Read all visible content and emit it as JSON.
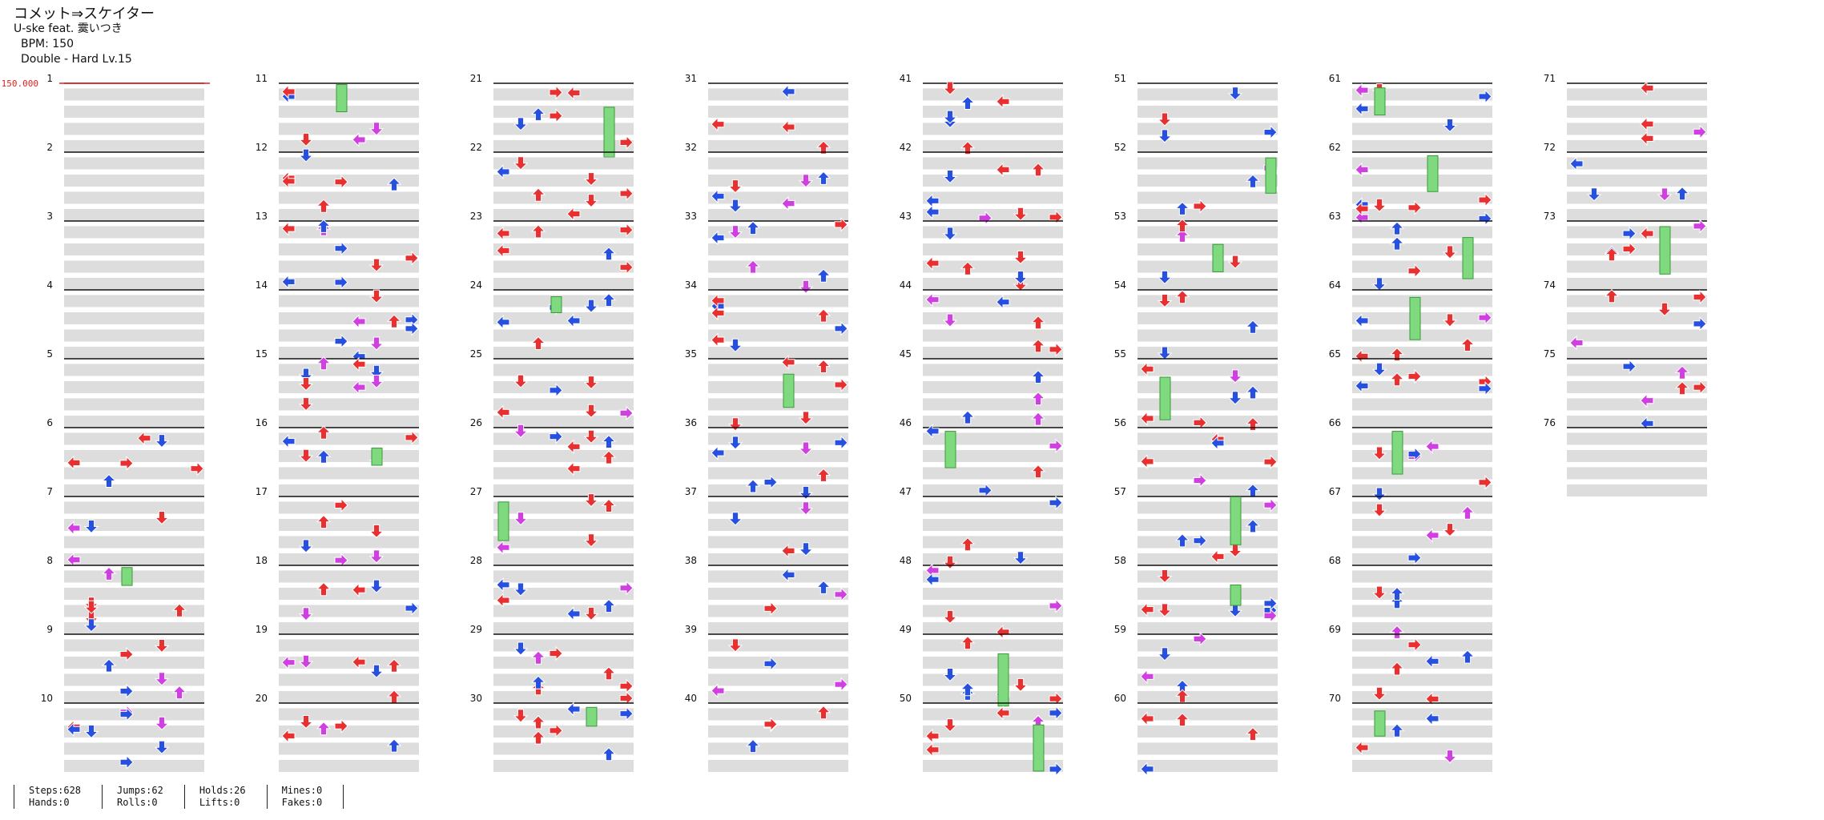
{
  "header": {
    "title": "コメット⇒スケイター",
    "artist": "U-ske feat. 霙いつき",
    "bpm": "BPM: 150",
    "difficulty": "Double - Hard  Lv.15"
  },
  "bpm_marker": "150.000",
  "measure_labels": [
    "1",
    "2",
    "3",
    "4",
    "5",
    "6",
    "7",
    "8",
    "9",
    "10",
    "11",
    "12",
    "13",
    "14",
    "15",
    "16",
    "17",
    "18",
    "19",
    "20",
    "21",
    "22",
    "23",
    "24",
    "25",
    "26",
    "27",
    "28",
    "29",
    "30",
    "31",
    "32",
    "33",
    "34",
    "35",
    "36",
    "37",
    "38",
    "39",
    "40",
    "41",
    "42",
    "43",
    "44",
    "45",
    "46",
    "47",
    "48",
    "49",
    "50",
    "51",
    "52",
    "53",
    "54",
    "55",
    "56",
    "57",
    "58",
    "59",
    "60",
    "61",
    "62",
    "63",
    "64",
    "65",
    "66",
    "67",
    "68",
    "69",
    "70",
    "71",
    "72",
    "73",
    "74",
    "75",
    "76"
  ],
  "stats": {
    "steps": "Steps:628",
    "hands": "Hands:0",
    "jumps": "Jumps:62",
    "rolls": "Rolls:0",
    "holds": "Holds:26",
    "lifts": "Lifts:0",
    "mines": "Mines:0",
    "fakes": "Fakes:0"
  },
  "colors": {
    "quarter": "#e83030",
    "eighth": "#2850e0",
    "sixteenth": "#d040e0",
    "hold": "#7fd97f",
    "stripe": "#dddddd",
    "measure_line": "#111111",
    "bpm": "#e02020"
  }
}
